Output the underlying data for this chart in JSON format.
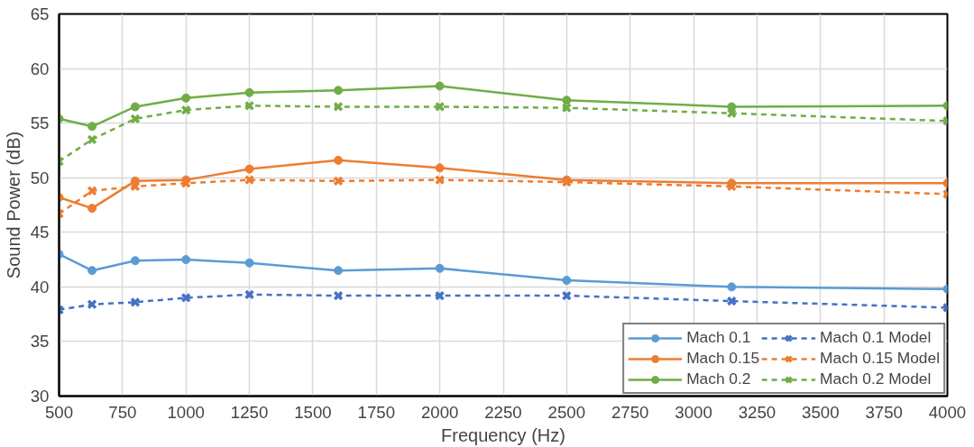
{
  "chart_data": {
    "type": "line",
    "xlabel": "Frequency (Hz)",
    "ylabel": "Sound Power (dB)",
    "x": [
      500,
      630,
      800,
      1000,
      1250,
      1600,
      2000,
      2500,
      3150,
      4000
    ],
    "xlim": [
      500,
      4000
    ],
    "xticks": [
      500,
      750,
      1000,
      1250,
      1500,
      1750,
      2000,
      2250,
      2500,
      2750,
      3000,
      3250,
      3500,
      3750,
      4000
    ],
    "ylim": [
      30,
      65
    ],
    "yticks": [
      30,
      35,
      40,
      45,
      50,
      55,
      60,
      65
    ],
    "grid": true,
    "legend": "bottom right",
    "series": [
      {
        "name": "Mach 0.1",
        "color": "#5b9bd5",
        "marker": "circle",
        "line_style": "solid",
        "values": [
          43.0,
          41.5,
          42.4,
          42.5,
          42.2,
          41.5,
          41.7,
          40.6,
          40.0,
          39.8
        ]
      },
      {
        "name": "Mach 0.1 Model",
        "color": "#4472c4",
        "marker": "cross",
        "line_style": "dashed",
        "values": [
          37.9,
          38.4,
          38.6,
          39.0,
          39.3,
          39.2,
          39.2,
          39.2,
          38.7,
          38.1
        ]
      },
      {
        "name": "Mach 0.15",
        "color": "#ed7d31",
        "marker": "circle",
        "line_style": "solid",
        "values": [
          48.2,
          47.2,
          49.7,
          49.8,
          50.8,
          51.6,
          50.9,
          49.8,
          49.5,
          49.5
        ]
      },
      {
        "name": "Mach 0.15 Model",
        "color": "#ed7d31",
        "marker": "cross",
        "line_style": "dashed",
        "values": [
          46.7,
          48.8,
          49.2,
          49.5,
          49.8,
          49.7,
          49.8,
          49.6,
          49.2,
          48.5
        ]
      },
      {
        "name": "Mach 0.2",
        "color": "#70ad47",
        "marker": "circle",
        "line_style": "solid",
        "values": [
          55.4,
          54.7,
          56.5,
          57.3,
          57.8,
          58.0,
          58.4,
          57.1,
          56.5,
          56.6
        ]
      },
      {
        "name": "Mach 0.2 Model",
        "color": "#70ad47",
        "marker": "cross",
        "line_style": "dashed",
        "values": [
          51.5,
          53.5,
          55.4,
          56.2,
          56.6,
          56.5,
          56.5,
          56.4,
          55.9,
          55.2
        ]
      }
    ]
  }
}
